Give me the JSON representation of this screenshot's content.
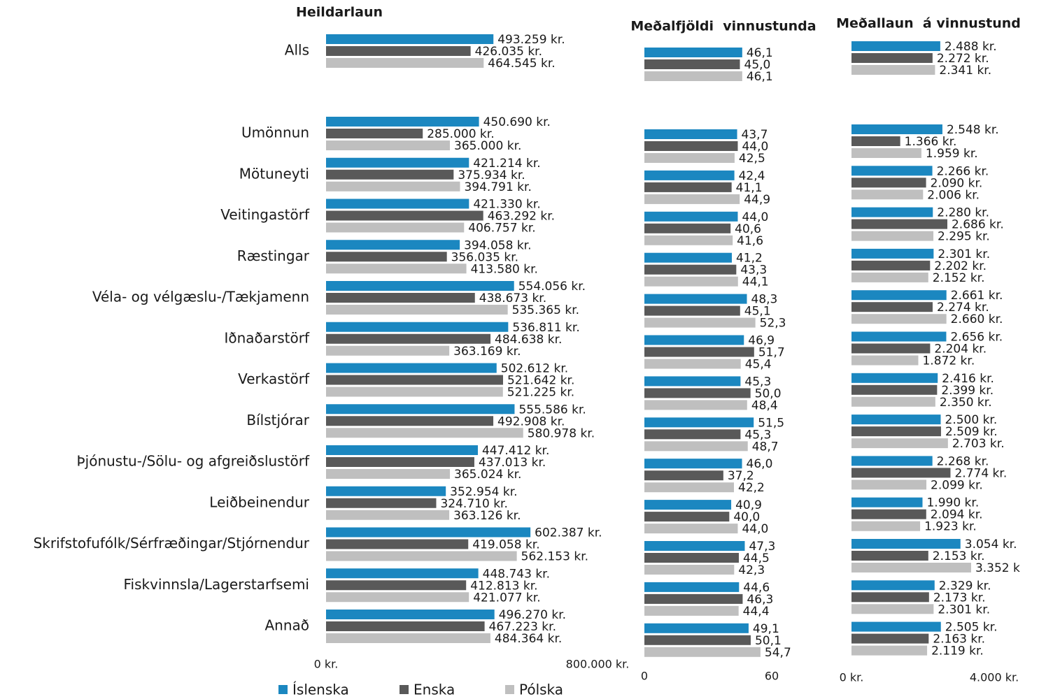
{
  "chart_data": [
    {
      "type": "bar",
      "orientation": "horizontal",
      "title": "Heildarlaun",
      "categories": [
        "Alls",
        "Umönnun",
        "Mötuneyti",
        "Veitingastörf",
        "Ræstingar",
        "Véla- og vélgæslu-/Tækjamenn",
        "Iðnaðarstörf",
        "Verkastörf",
        "Bílstjórar",
        "Þjónustu-/Sölu- og afgreiðslustörf",
        "Leiðbeinendur",
        "Skrifstofufólk/Sérfræðingar/Stjórnendur",
        "Fiskvinnsla/Lagerstarfsemi",
        "Annað"
      ],
      "xlim": [
        0,
        800000
      ],
      "xticks": [
        {
          "value": 0,
          "label": "0 kr."
        },
        {
          "value": 800000,
          "label": "800.000 kr."
        }
      ],
      "legend": "bottom",
      "series": [
        {
          "name": "Íslenska",
          "color": "#1b87c0",
          "values": [
            493259,
            450690,
            421214,
            421330,
            394058,
            554056,
            536811,
            502612,
            555586,
            447412,
            352954,
            602387,
            448743,
            496270
          ],
          "value_labels": [
            "493.259 kr.",
            "450.690 kr.",
            "421.214 kr.",
            "421.330 kr.",
            "394.058 kr.",
            "554.056 kr.",
            "536.811 kr.",
            "502.612 kr.",
            "555.586 kr.",
            "447.412 kr.",
            "352.954 kr.",
            "602.387 kr.",
            "448.743 kr.",
            "496.270 kr."
          ]
        },
        {
          "name": "Enska",
          "color": "#595959",
          "values": [
            426035,
            285000,
            375934,
            463292,
            356035,
            438673,
            484638,
            521642,
            492908,
            437013,
            324710,
            419058,
            412813,
            467223
          ],
          "value_labels": [
            "426.035 kr.",
            "285.000 kr.",
            "375.934 kr.",
            "463.292 kr.",
            "356.035 kr.",
            "438.673 kr.",
            "484.638 kr.",
            "521.642 kr.",
            "492.908 kr.",
            "437.013 kr.",
            "324.710 kr.",
            "419.058 kr.",
            "412.813 kr.",
            "467.223 kr."
          ]
        },
        {
          "name": "Pólska",
          "color": "#bfbfbf",
          "values": [
            464545,
            365000,
            394791,
            406757,
            413580,
            535365,
            363169,
            521225,
            580978,
            365024,
            363126,
            562153,
            421077,
            484364
          ],
          "value_labels": [
            "464.545 kr.",
            "365.000 kr.",
            "394.791 kr.",
            "406.757 kr.",
            "413.580 kr.",
            "535.365 kr.",
            "363.169 kr.",
            "521.225 kr.",
            "580.978 kr.",
            "365.024 kr.",
            "363.126 kr.",
            "562.153 kr.",
            "421.077 kr.",
            "484.364 kr."
          ]
        }
      ]
    },
    {
      "type": "bar",
      "orientation": "horizontal",
      "title": "Meðalfjöldi  vinnustunda",
      "xlim": [
        0,
        60
      ],
      "xticks": [
        0,
        60
      ],
      "series": [
        {
          "color": "#1b87c0",
          "values": [
            46.1,
            43.7,
            42.4,
            44.0,
            41.2,
            48.3,
            46.9,
            45.3,
            51.5,
            46.0,
            40.9,
            47.3,
            44.6,
            49.1
          ],
          "value_labels": [
            "46,1",
            "43,7",
            "42,4",
            "44,0",
            "41,2",
            "48,3",
            "46,9",
            "45,3",
            "51,5",
            "46,0",
            "40,9",
            "47,3",
            "44,6",
            "49,1"
          ]
        },
        {
          "color": "#595959",
          "values": [
            45.0,
            44.0,
            41.1,
            40.6,
            43.3,
            45.1,
            51.7,
            50.0,
            45.3,
            37.2,
            40.0,
            44.5,
            46.3,
            50.1
          ],
          "value_labels": [
            "45,0",
            "44,0",
            "41,1",
            "40,6",
            "43,3",
            "45,1",
            "51,7",
            "50,0",
            "45,3",
            "37,2",
            "40,0",
            "44,5",
            "46,3",
            "50,1"
          ]
        },
        {
          "color": "#bfbfbf",
          "values": [
            46.1,
            42.5,
            44.9,
            41.6,
            44.1,
            52.3,
            45.4,
            48.4,
            48.7,
            42.2,
            44.0,
            42.3,
            44.4,
            54.7
          ],
          "value_labels": [
            "46,1",
            "42,5",
            "44,9",
            "41,6",
            "44,1",
            "52,3",
            "45,4",
            "48,4",
            "48,7",
            "42,2",
            "44,0",
            "42,3",
            "44,4",
            "54,7"
          ]
        }
      ]
    },
    {
      "type": "bar",
      "orientation": "horizontal",
      "title": "Meðallaun  á vinnustund",
      "xlim": [
        0,
        4000
      ],
      "xticks": [
        {
          "value": 0,
          "label": "0 kr."
        },
        {
          "value": 4000,
          "label": "4.000 kr."
        }
      ],
      "series": [
        {
          "color": "#1b87c0",
          "values": [
            2488,
            2548,
            2266,
            2280,
            2301,
            2661,
            2656,
            2416,
            2500,
            2268,
            1990,
            3054,
            2329,
            2505
          ],
          "value_labels": [
            "2.488 kr.",
            "2.548 kr.",
            "2.266 kr.",
            "2.280 kr.",
            "2.301 kr.",
            "2.661 kr.",
            "2.656 kr.",
            "2.416 kr.",
            "2.500 kr.",
            "2.268 kr.",
            "1.990 kr.",
            "3.054 kr.",
            "2.329 kr.",
            "2.505 kr."
          ]
        },
        {
          "color": "#595959",
          "values": [
            2272,
            1366,
            2090,
            2686,
            2202,
            2274,
            2204,
            2399,
            2509,
            2774,
            2094,
            2153,
            2173,
            2163
          ],
          "value_labels": [
            "2.272 kr.",
            "1.366 kr.",
            "2.090 kr.",
            "2.686 kr.",
            "2.202 kr.",
            "2.274 kr.",
            "2.204 kr.",
            "2.399 kr.",
            "2.509 kr.",
            "2.774 kr.",
            "2.094 kr.",
            "2.153 kr.",
            "2.173 kr.",
            "2.163 kr."
          ]
        },
        {
          "color": "#bfbfbf",
          "values": [
            2341,
            1959,
            2006,
            2295,
            2152,
            2660,
            1872,
            2350,
            2703,
            2099,
            1923,
            3352,
            2301,
            2119
          ],
          "value_labels": [
            "2.341 kr.",
            "1.959 kr.",
            "2.006 kr.",
            "2.295 kr.",
            "2.152 kr.",
            "2.660 kr.",
            "1.872 kr.",
            "2.350 kr.",
            "2.703 kr.",
            "2.099 kr.",
            "1.923 kr.",
            "3.352 k",
            "2.301 kr.",
            "2.119 kr."
          ]
        }
      ]
    }
  ]
}
